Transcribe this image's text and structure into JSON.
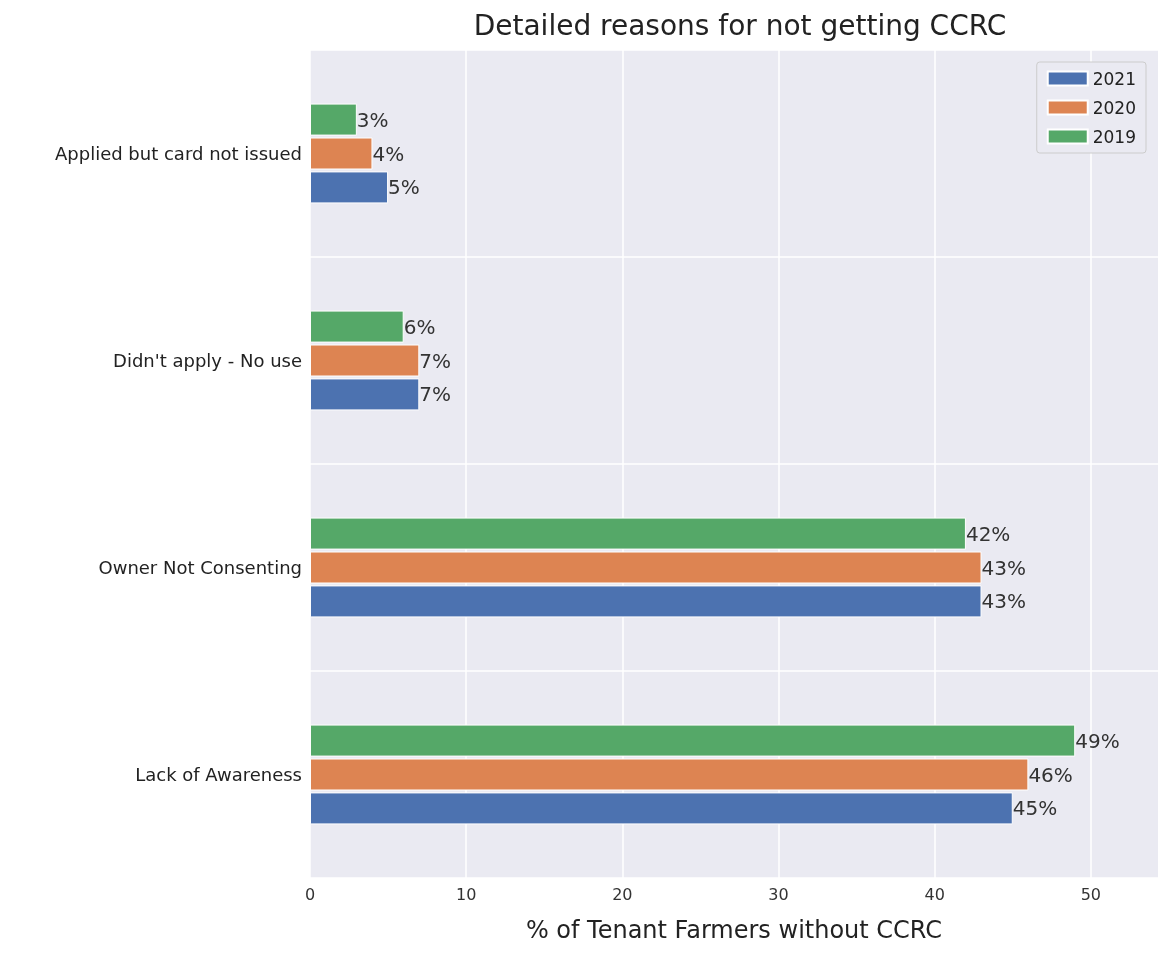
{
  "chart_data": {
    "type": "bar",
    "orientation": "horizontal",
    "title": "Detailed reasons for not getting CCRC",
    "xlabel": "% of Tenant Farmers without CCRC",
    "categories": [
      "Applied but card not issued",
      "Didn't apply - No use",
      "Owner Not Consenting",
      "Lack of Awareness"
    ],
    "series": [
      {
        "name": "2021",
        "color": "#4c72b0",
        "values": [
          5,
          7,
          43,
          45
        ],
        "value_labels": [
          "5%",
          "7%",
          "43%",
          "45%"
        ]
      },
      {
        "name": "2020",
        "color": "#dd8452",
        "values": [
          4,
          7,
          43,
          46
        ],
        "value_labels": [
          "4%",
          "7%",
          "43%",
          "46%"
        ]
      },
      {
        "name": "2019",
        "color": "#55a868",
        "values": [
          3,
          6,
          42,
          49
        ],
        "value_labels": [
          "3%",
          "6%",
          "42%",
          "49%"
        ]
      }
    ],
    "xlim": [
      0,
      54.3
    ],
    "xticks": [
      0,
      10,
      20,
      30,
      40,
      50
    ],
    "grid": true,
    "legend": "top right"
  }
}
